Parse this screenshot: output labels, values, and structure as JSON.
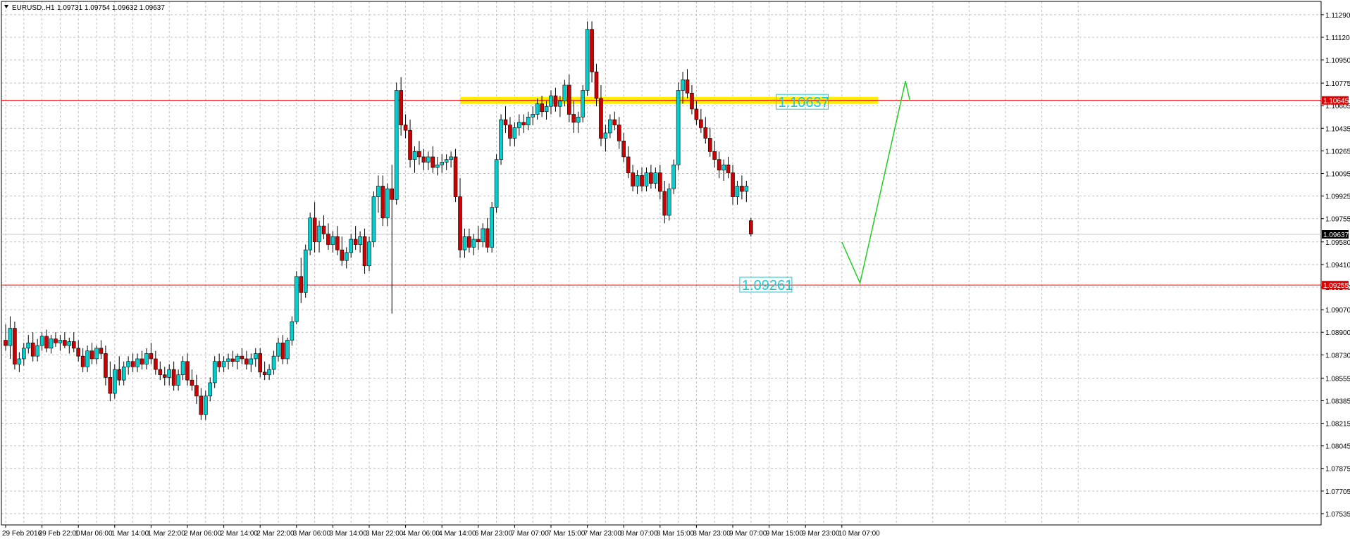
{
  "header": {
    "symbol": "EURUSD..H1",
    "ohlc": "1.09731 1.09754 1.09632 1.09637"
  },
  "colors": {
    "bull": "#00d0d0",
    "bear": "#cc0000",
    "wick": "#000000",
    "grid": "#c0c0c0",
    "hline": "#ff0000",
    "highlight": "#ffee00",
    "forecast": "#22cc22",
    "label_text": "#20c8d0",
    "current": "#c8c8c8"
  },
  "chart_data": {
    "type": "candlestick",
    "price_range": [
      1.0745,
      1.1139
    ],
    "y_ticks": [
      "1.11290",
      "1.11120",
      "1.10950",
      "1.10775",
      "1.10605",
      "1.10435",
      "1.10265",
      "1.10095",
      "1.09925",
      "1.09755",
      "1.09580",
      "1.09410",
      "1.09240",
      "1.09070",
      "1.08900",
      "1.08730",
      "1.08555",
      "1.08385",
      "1.08215",
      "1.08045",
      "1.07875",
      "1.07705",
      "1.07535"
    ],
    "x_ticks": [
      {
        "i": 0,
        "label": "29 Feb 2016"
      },
      {
        "i": 8,
        "label": "29 Feb 22:00"
      },
      {
        "i": 16,
        "label": "1 Mar 06:00"
      },
      {
        "i": 24,
        "label": "1 Mar 14:00"
      },
      {
        "i": 32,
        "label": "1 Mar 22:00"
      },
      {
        "i": 40,
        "label": "2 Mar 06:00"
      },
      {
        "i": 48,
        "label": "2 Mar 14:00"
      },
      {
        "i": 56,
        "label": "2 Mar 22:00"
      },
      {
        "i": 64,
        "label": "3 Mar 06:00"
      },
      {
        "i": 72,
        "label": "3 Mar 14:00"
      },
      {
        "i": 80,
        "label": "3 Mar 22:00"
      },
      {
        "i": 88,
        "label": "4 Mar 06:00"
      },
      {
        "i": 96,
        "label": "4 Mar 14:00"
      },
      {
        "i": 104,
        "label": "6 Mar 23:00"
      },
      {
        "i": 112,
        "label": "7 Mar 07:00"
      },
      {
        "i": 120,
        "label": "7 Mar 15:00"
      },
      {
        "i": 128,
        "label": "7 Mar 23:00"
      },
      {
        "i": 136,
        "label": "8 Mar 07:00"
      },
      {
        "i": 144,
        "label": "8 Mar 15:00"
      },
      {
        "i": 152,
        "label": "8 Mar 23:00"
      },
      {
        "i": 160,
        "label": "9 Mar 07:00"
      },
      {
        "i": 168,
        "label": "9 Mar 15:00"
      },
      {
        "i": 176,
        "label": "9 Mar 23:00"
      },
      {
        "i": 184,
        "label": "10 Mar 07:00"
      }
    ],
    "candles_ohlc": [
      [
        1.0884,
        1.0896,
        1.0876,
        1.088
      ],
      [
        1.088,
        1.0902,
        1.087,
        1.0893
      ],
      [
        1.0893,
        1.0898,
        1.0862,
        1.0866
      ],
      [
        1.0866,
        1.0875,
        1.086,
        1.087
      ],
      [
        1.087,
        1.0882,
        1.0865,
        1.0878
      ],
      [
        1.0878,
        1.0888,
        1.0874,
        1.0882
      ],
      [
        1.0882,
        1.089,
        1.0868,
        1.0872
      ],
      [
        1.0872,
        1.0885,
        1.0868,
        1.088
      ],
      [
        1.088,
        1.089,
        1.0876,
        1.0887
      ],
      [
        1.0887,
        1.0892,
        1.0875,
        1.0878
      ],
      [
        1.0878,
        1.0888,
        1.0874,
        1.0885
      ],
      [
        1.0885,
        1.089,
        1.0879,
        1.0882
      ],
      [
        1.0882,
        1.0888,
        1.0876,
        1.0884
      ],
      [
        1.0884,
        1.089,
        1.0878,
        1.088
      ],
      [
        1.088,
        1.0886,
        1.0874,
        1.0883
      ],
      [
        1.0883,
        1.089,
        1.0875,
        1.0878
      ],
      [
        1.0878,
        1.0884,
        1.0868,
        1.0872
      ],
      [
        1.0872,
        1.0878,
        1.086,
        1.0864
      ],
      [
        1.0864,
        1.088,
        1.086,
        1.0876
      ],
      [
        1.0876,
        1.0882,
        1.0866,
        1.087
      ],
      [
        1.087,
        1.088,
        1.0866,
        1.0878
      ],
      [
        1.0878,
        1.0884,
        1.087,
        1.0874
      ],
      [
        1.0874,
        1.088,
        1.085,
        1.0856
      ],
      [
        1.0856,
        1.0868,
        1.0838,
        1.0844
      ],
      [
        1.0844,
        1.0866,
        1.084,
        1.0862
      ],
      [
        1.0862,
        1.0872,
        1.085,
        1.0854
      ],
      [
        1.0854,
        1.0868,
        1.085,
        1.0864
      ],
      [
        1.0864,
        1.0872,
        1.0858,
        1.0868
      ],
      [
        1.0868,
        1.0874,
        1.086,
        1.0864
      ],
      [
        1.0864,
        1.0874,
        1.086,
        1.087
      ],
      [
        1.087,
        1.0876,
        1.0862,
        1.0866
      ],
      [
        1.0866,
        1.0878,
        1.0862,
        1.0874
      ],
      [
        1.0874,
        1.0882,
        1.0866,
        1.087
      ],
      [
        1.087,
        1.0876,
        1.0858,
        1.0862
      ],
      [
        1.0862,
        1.0868,
        1.0854,
        1.0858
      ],
      [
        1.0858,
        1.0864,
        1.085,
        1.0856
      ],
      [
        1.0856,
        1.0866,
        1.085,
        1.0862
      ],
      [
        1.0862,
        1.0868,
        1.0846,
        1.085
      ],
      [
        1.085,
        1.0862,
        1.0846,
        1.0858
      ],
      [
        1.0858,
        1.0872,
        1.0854,
        1.0868
      ],
      [
        1.0868,
        1.0874,
        1.085,
        1.0854
      ],
      [
        1.0854,
        1.0862,
        1.0846,
        1.085
      ],
      [
        1.085,
        1.0858,
        1.0836,
        1.0842
      ],
      [
        1.0842,
        1.0848,
        1.0824,
        1.0828
      ],
      [
        1.0828,
        1.0846,
        1.0824,
        1.0842
      ],
      [
        1.0842,
        1.0856,
        1.0838,
        1.0852
      ],
      [
        1.0852,
        1.0872,
        1.0848,
        1.0868
      ],
      [
        1.0868,
        1.0874,
        1.086,
        1.0864
      ],
      [
        1.0864,
        1.0872,
        1.086,
        1.0868
      ],
      [
        1.0868,
        1.0874,
        1.0862,
        1.087
      ],
      [
        1.087,
        1.0876,
        1.0864,
        1.0868
      ],
      [
        1.0868,
        1.0874,
        1.0862,
        1.0872
      ],
      [
        1.0872,
        1.0878,
        1.0866,
        1.087
      ],
      [
        1.087,
        1.0876,
        1.0862,
        1.0866
      ],
      [
        1.0866,
        1.0874,
        1.086,
        1.087
      ],
      [
        1.087,
        1.0878,
        1.0864,
        1.0874
      ],
      [
        1.0874,
        1.0878,
        1.0856,
        1.086
      ],
      [
        1.086,
        1.0868,
        1.0854,
        1.0858
      ],
      [
        1.0858,
        1.0866,
        1.0854,
        1.0862
      ],
      [
        1.0862,
        1.0876,
        1.0858,
        1.0872
      ],
      [
        1.0872,
        1.0886,
        1.0868,
        1.0882
      ],
      [
        1.0882,
        1.0888,
        1.0866,
        1.087
      ],
      [
        1.087,
        1.0886,
        1.0866,
        1.0884
      ],
      [
        1.0884,
        1.0902,
        1.088,
        1.0898
      ],
      [
        1.0898,
        1.0936,
        1.0896,
        1.0932
      ],
      [
        1.0932,
        1.0946,
        1.0912,
        1.092
      ],
      [
        1.092,
        1.0956,
        1.0916,
        1.0952
      ],
      [
        1.0952,
        1.098,
        1.0948,
        1.0976
      ],
      [
        1.0976,
        1.0988,
        1.095,
        1.0958
      ],
      [
        1.0958,
        1.0974,
        1.095,
        1.097
      ],
      [
        1.097,
        1.0978,
        1.096,
        1.0964
      ],
      [
        1.0964,
        1.0972,
        1.0952,
        1.0956
      ],
      [
        1.0956,
        1.0966,
        1.095,
        1.0962
      ],
      [
        1.0962,
        1.097,
        1.0948,
        1.0952
      ],
      [
        1.0952,
        1.0962,
        1.094,
        1.0944
      ],
      [
        1.0944,
        1.0954,
        1.0938,
        1.095
      ],
      [
        1.095,
        1.0964,
        1.0946,
        1.096
      ],
      [
        1.096,
        1.097,
        1.0952,
        1.0956
      ],
      [
        1.0956,
        1.0966,
        1.095,
        1.0962
      ],
      [
        1.0962,
        1.0968,
        1.0934,
        1.094
      ],
      [
        1.094,
        1.0962,
        1.0936,
        1.0958
      ],
      [
        1.0958,
        1.0996,
        1.0954,
        1.0992
      ],
      [
        1.0992,
        1.1008,
        1.098,
        1.1
      ],
      [
        1.1,
        1.1008,
        1.097,
        1.0976
      ],
      [
        1.0976,
        1.1002,
        1.097,
        1.0998
      ],
      [
        1.0998,
        1.1016,
        1.0904,
        1.099
      ],
      [
        1.099,
        1.1078,
        1.0986,
        1.1072
      ],
      [
        1.1072,
        1.1082,
        1.1038,
        1.1046
      ],
      [
        1.1046,
        1.1054,
        1.1036,
        1.1042
      ],
      [
        1.1042,
        1.105,
        1.1014,
        1.102
      ],
      [
        1.102,
        1.103,
        1.101,
        1.1026
      ],
      [
        1.1026,
        1.1034,
        1.1016,
        1.1022
      ],
      [
        1.1022,
        1.1028,
        1.1012,
        1.1018
      ],
      [
        1.1018,
        1.1026,
        1.1012,
        1.1022
      ],
      [
        1.1022,
        1.103,
        1.101,
        1.1014
      ],
      [
        1.1014,
        1.1022,
        1.1008,
        1.1016
      ],
      [
        1.1016,
        1.1024,
        1.101,
        1.1018
      ],
      [
        1.1018,
        1.1024,
        1.1012,
        1.102
      ],
      [
        1.102,
        1.1026,
        1.1014,
        1.1022
      ],
      [
        1.1022,
        1.1028,
        1.0988,
        1.0992
      ],
      [
        1.0992,
        1.1006,
        1.0946,
        1.0952
      ],
      [
        1.0952,
        1.0968,
        1.0946,
        1.0962
      ],
      [
        1.0962,
        1.0968,
        1.095,
        1.0954
      ],
      [
        1.0954,
        1.0964,
        1.0948,
        1.096
      ],
      [
        1.096,
        1.097,
        1.0952,
        1.0958
      ],
      [
        1.0958,
        1.0972,
        1.0954,
        1.0968
      ],
      [
        1.0968,
        1.0976,
        1.095,
        1.0954
      ],
      [
        1.0954,
        1.0988,
        1.095,
        1.0984
      ],
      [
        1.0984,
        1.1024,
        1.098,
        1.102
      ],
      [
        1.102,
        1.1054,
        1.1016,
        1.105
      ],
      [
        1.105,
        1.106,
        1.104,
        1.1046
      ],
      [
        1.1046,
        1.1052,
        1.103,
        1.1036
      ],
      [
        1.1036,
        1.1048,
        1.103,
        1.1044
      ],
      [
        1.1044,
        1.1054,
        1.1038,
        1.1048
      ],
      [
        1.1048,
        1.1054,
        1.104,
        1.1046
      ],
      [
        1.1046,
        1.1056,
        1.1042,
        1.1052
      ],
      [
        1.1052,
        1.106,
        1.1046,
        1.1054
      ],
      [
        1.1054,
        1.1066,
        1.105,
        1.1062
      ],
      [
        1.1062,
        1.1068,
        1.1052,
        1.1056
      ],
      [
        1.1056,
        1.1064,
        1.105,
        1.106
      ],
      [
        1.106,
        1.1072,
        1.1054,
        1.1068
      ],
      [
        1.1068,
        1.1074,
        1.1056,
        1.106
      ],
      [
        1.106,
        1.1068,
        1.1052,
        1.1064
      ],
      [
        1.1064,
        1.108,
        1.106,
        1.1076
      ],
      [
        1.1076,
        1.1084,
        1.1048,
        1.1054
      ],
      [
        1.1054,
        1.1064,
        1.104,
        1.1048
      ],
      [
        1.1048,
        1.1056,
        1.104,
        1.1052
      ],
      [
        1.1052,
        1.1076,
        1.1048,
        1.1072
      ],
      [
        1.1072,
        1.1124,
        1.1068,
        1.1118
      ],
      [
        1.1118,
        1.1124,
        1.1078,
        1.1086
      ],
      [
        1.1086,
        1.1092,
        1.106,
        1.1066
      ],
      [
        1.1066,
        1.1076,
        1.103,
        1.1036
      ],
      [
        1.1036,
        1.1046,
        1.1026,
        1.104
      ],
      [
        1.104,
        1.1054,
        1.1036,
        1.105
      ],
      [
        1.105,
        1.1056,
        1.1042,
        1.1046
      ],
      [
        1.1046,
        1.1052,
        1.1028,
        1.1034
      ],
      [
        1.1034,
        1.104,
        1.1018,
        1.1022
      ],
      [
        1.1022,
        1.103,
        1.1006,
        1.101
      ],
      [
        1.101,
        1.1016,
        1.0996,
        1.1
      ],
      [
        1.1,
        1.1012,
        1.0994,
        1.1008
      ],
      [
        1.1008,
        1.1014,
        1.0996,
        1.1
      ],
      [
        1.1,
        1.1014,
        1.0996,
        1.101
      ],
      [
        1.101,
        1.1016,
        1.0998,
        1.1002
      ],
      [
        1.1002,
        1.1014,
        1.0998,
        1.101
      ],
      [
        1.101,
        1.1016,
        1.099,
        1.0996
      ],
      [
        1.0996,
        1.1004,
        1.0972,
        1.0978
      ],
      [
        1.0978,
        1.1002,
        1.0974,
        1.0998
      ],
      [
        1.0998,
        1.102,
        1.0994,
        1.1016
      ],
      [
        1.1016,
        1.1078,
        1.1012,
        1.1072
      ],
      [
        1.1072,
        1.1086,
        1.1062,
        1.108
      ],
      [
        1.108,
        1.1088,
        1.1066,
        1.107
      ],
      [
        1.107,
        1.1076,
        1.1054,
        1.1058
      ],
      [
        1.1058,
        1.1064,
        1.1046,
        1.105
      ],
      [
        1.105,
        1.1058,
        1.104,
        1.1044
      ],
      [
        1.1044,
        1.1052,
        1.1032,
        1.1036
      ],
      [
        1.1036,
        1.1044,
        1.1022,
        1.1026
      ],
      [
        1.1026,
        1.1034,
        1.1014,
        1.102
      ],
      [
        1.102,
        1.1026,
        1.1006,
        1.1012
      ],
      [
        1.1012,
        1.102,
        1.1004,
        1.1016
      ],
      [
        1.1016,
        1.1022,
        1.1006,
        1.101
      ],
      [
        1.101,
        1.1016,
        1.0986,
        1.0992
      ],
      [
        1.0992,
        1.1004,
        1.0986,
        1.1
      ],
      [
        1.1,
        1.1008,
        1.099,
        1.0996
      ],
      [
        1.0996,
        1.1004,
        1.0988,
        1.1
      ],
      [
        1.0974,
        1.0976,
        1.0962,
        1.0964
      ]
    ],
    "resistance_line": {
      "price": 1.10645,
      "badge": "1.10645"
    },
    "support_line": {
      "price": 1.09255,
      "badge": "1.09255"
    },
    "current_price": {
      "price": 1.09637,
      "badge": "1.09637"
    },
    "resistance_zone": {
      "price": 1.10645,
      "from_i": 100,
      "to_i": 192
    },
    "labels": [
      {
        "text": "1.10637",
        "price": 1.10637,
        "i": 170
      },
      {
        "text": "1.09261",
        "price": 1.09261,
        "i": 162
      }
    ],
    "forecast_path": [
      {
        "i": 184,
        "price": 1.0958
      },
      {
        "i": 188,
        "price": 1.0927
      },
      {
        "i": 198,
        "price": 1.1079
      },
      {
        "i": 199,
        "price": 1.1064
      }
    ]
  }
}
